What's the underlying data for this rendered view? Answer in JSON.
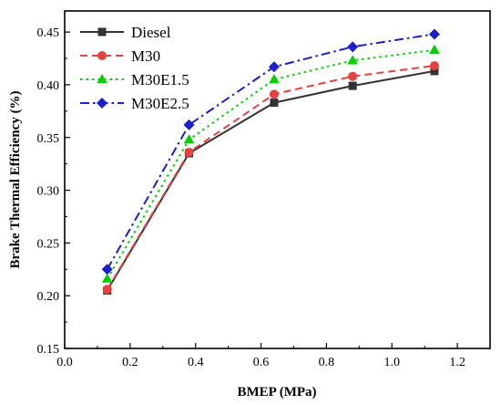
{
  "chart_data": {
    "type": "line",
    "xlabel": "BMEP (MPa)",
    "ylabel": "Brake Thermal Efficiency (%)",
    "xlim": [
      0.0,
      1.3
    ],
    "ylim": [
      0.15,
      0.47
    ],
    "xticks": [
      0.0,
      0.2,
      0.4,
      0.6,
      0.8,
      1.0,
      1.2
    ],
    "xtick_labels": [
      "0.0",
      "0.2",
      "0.4",
      "0.6",
      "0.8",
      "1.0",
      "1.2"
    ],
    "yticks": [
      0.15,
      0.2,
      0.25,
      0.3,
      0.35,
      0.4,
      0.45
    ],
    "ytick_labels": [
      "0.15",
      "0.20",
      "0.25",
      "0.30",
      "0.35",
      "0.40",
      "0.45"
    ],
    "legend_position": "top-left",
    "grid": false,
    "x": [
      0.13,
      0.38,
      0.64,
      0.88,
      1.13
    ],
    "series": [
      {
        "name": "Diesel",
        "values": [
          0.205,
          0.335,
          0.383,
          0.399,
          0.413
        ],
        "color": "#333333",
        "marker": "square",
        "dash": "solid"
      },
      {
        "name": "M30",
        "values": [
          0.206,
          0.336,
          0.391,
          0.408,
          0.418
        ],
        "color": "#e8403e",
        "marker": "circle",
        "dash": "dash"
      },
      {
        "name": "M30E1.5",
        "values": [
          0.216,
          0.348,
          0.405,
          0.423,
          0.433
        ],
        "color": "#00d200",
        "marker": "triangle",
        "dash": "dot"
      },
      {
        "name": "M30E2.5",
        "values": [
          0.225,
          0.362,
          0.417,
          0.436,
          0.448
        ],
        "color": "#1b1fcf",
        "marker": "diamond",
        "dash": "dashdot"
      }
    ]
  }
}
